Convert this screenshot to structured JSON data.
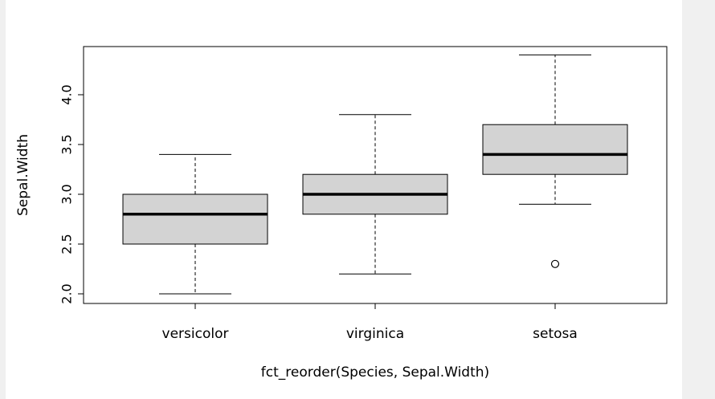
{
  "chart_data": {
    "type": "boxplot",
    "title": "",
    "xlabel": "fct_reorder(Species, Sepal.Width)",
    "ylabel": "Sepal.Width",
    "ylim": [
      1.9,
      4.45
    ],
    "yticks": [
      "2.0",
      "2.5",
      "3.0",
      "3.5",
      "4.0"
    ],
    "box_fill": "#d3d3d3",
    "categories": [
      "versicolor",
      "virginica",
      "setosa"
    ],
    "boxes": [
      {
        "category": "versicolor",
        "whisker_low": 2.0,
        "q1": 2.5,
        "median": 2.8,
        "q3": 3.0,
        "whisker_high": 3.4,
        "outliers": []
      },
      {
        "category": "virginica",
        "whisker_low": 2.2,
        "q1": 2.8,
        "median": 3.0,
        "q3": 3.2,
        "whisker_high": 3.8,
        "outliers": []
      },
      {
        "category": "setosa",
        "whisker_low": 2.9,
        "q1": 3.2,
        "median": 3.4,
        "q3": 3.7,
        "whisker_high": 4.4,
        "outliers": [
          2.3
        ]
      }
    ]
  }
}
